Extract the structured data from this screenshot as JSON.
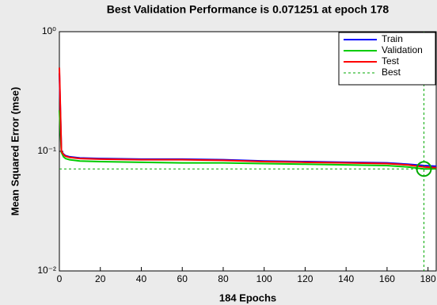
{
  "chart_data": {
    "type": "line",
    "title": "Best Validation Performance is 0.071251 at epoch 178",
    "x_label": "184 Epochs",
    "y_label": "Mean Squared Error  (mse)",
    "x": [
      0,
      1,
      2,
      3,
      5,
      10,
      20,
      40,
      60,
      80,
      100,
      120,
      140,
      160,
      170,
      178,
      184
    ],
    "series": [
      {
        "name": "Train",
        "color": "#0000ff",
        "values": [
          0.45,
          0.1,
          0.095,
          0.092,
          0.09,
          0.088,
          0.087,
          0.086,
          0.086,
          0.085,
          0.083,
          0.082,
          0.081,
          0.08,
          0.078,
          0.076,
          0.075
        ]
      },
      {
        "name": "Validation",
        "color": "#00cc00",
        "values": [
          0.22,
          0.098,
          0.09,
          0.087,
          0.085,
          0.083,
          0.082,
          0.081,
          0.08,
          0.08,
          0.079,
          0.078,
          0.077,
          0.076,
          0.074,
          0.071251,
          0.0713
        ]
      },
      {
        "name": "Test",
        "color": "#ff0000",
        "values": [
          0.5,
          0.1,
          0.094,
          0.091,
          0.089,
          0.087,
          0.086,
          0.085,
          0.085,
          0.084,
          0.082,
          0.081,
          0.08,
          0.079,
          0.077,
          0.074,
          0.073
        ]
      }
    ],
    "best": {
      "name": "Best",
      "color": "#00aa00",
      "x": 178,
      "y": 0.071251
    },
    "xlim": [
      0,
      184
    ],
    "xticks": [
      0,
      20,
      40,
      60,
      80,
      100,
      120,
      140,
      160,
      180
    ],
    "ylim": [
      0.01,
      1
    ],
    "yticks": [
      {
        "value": 0.01,
        "label": "10⁻²"
      },
      {
        "value": 0.1,
        "label": "10⁻¹"
      },
      {
        "value": 1,
        "label": "10⁰"
      }
    ],
    "log_y": true,
    "grid": false,
    "legend": "top-right"
  }
}
